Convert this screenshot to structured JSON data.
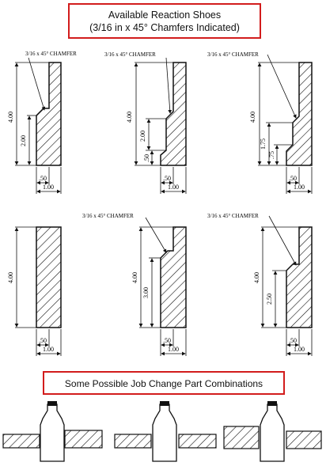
{
  "header": {
    "line1": "Available Reaction Shoes",
    "line2": "(3/16 in x 45° Chamfers Indicated)"
  },
  "callout": "3/16 x 45° CHAMFER",
  "dims": {
    "d400": "4.00",
    "d300": "3.00",
    "d250": "2.50",
    "d200": "2.00",
    "d175": "1.75",
    "d075": ".75",
    "d050": ".50",
    "d100": "1.00"
  },
  "footer": {
    "label": "Some Possible Job Change Part Combinations"
  },
  "colors": {
    "frame": "#d21c1c",
    "line": "#111111"
  }
}
